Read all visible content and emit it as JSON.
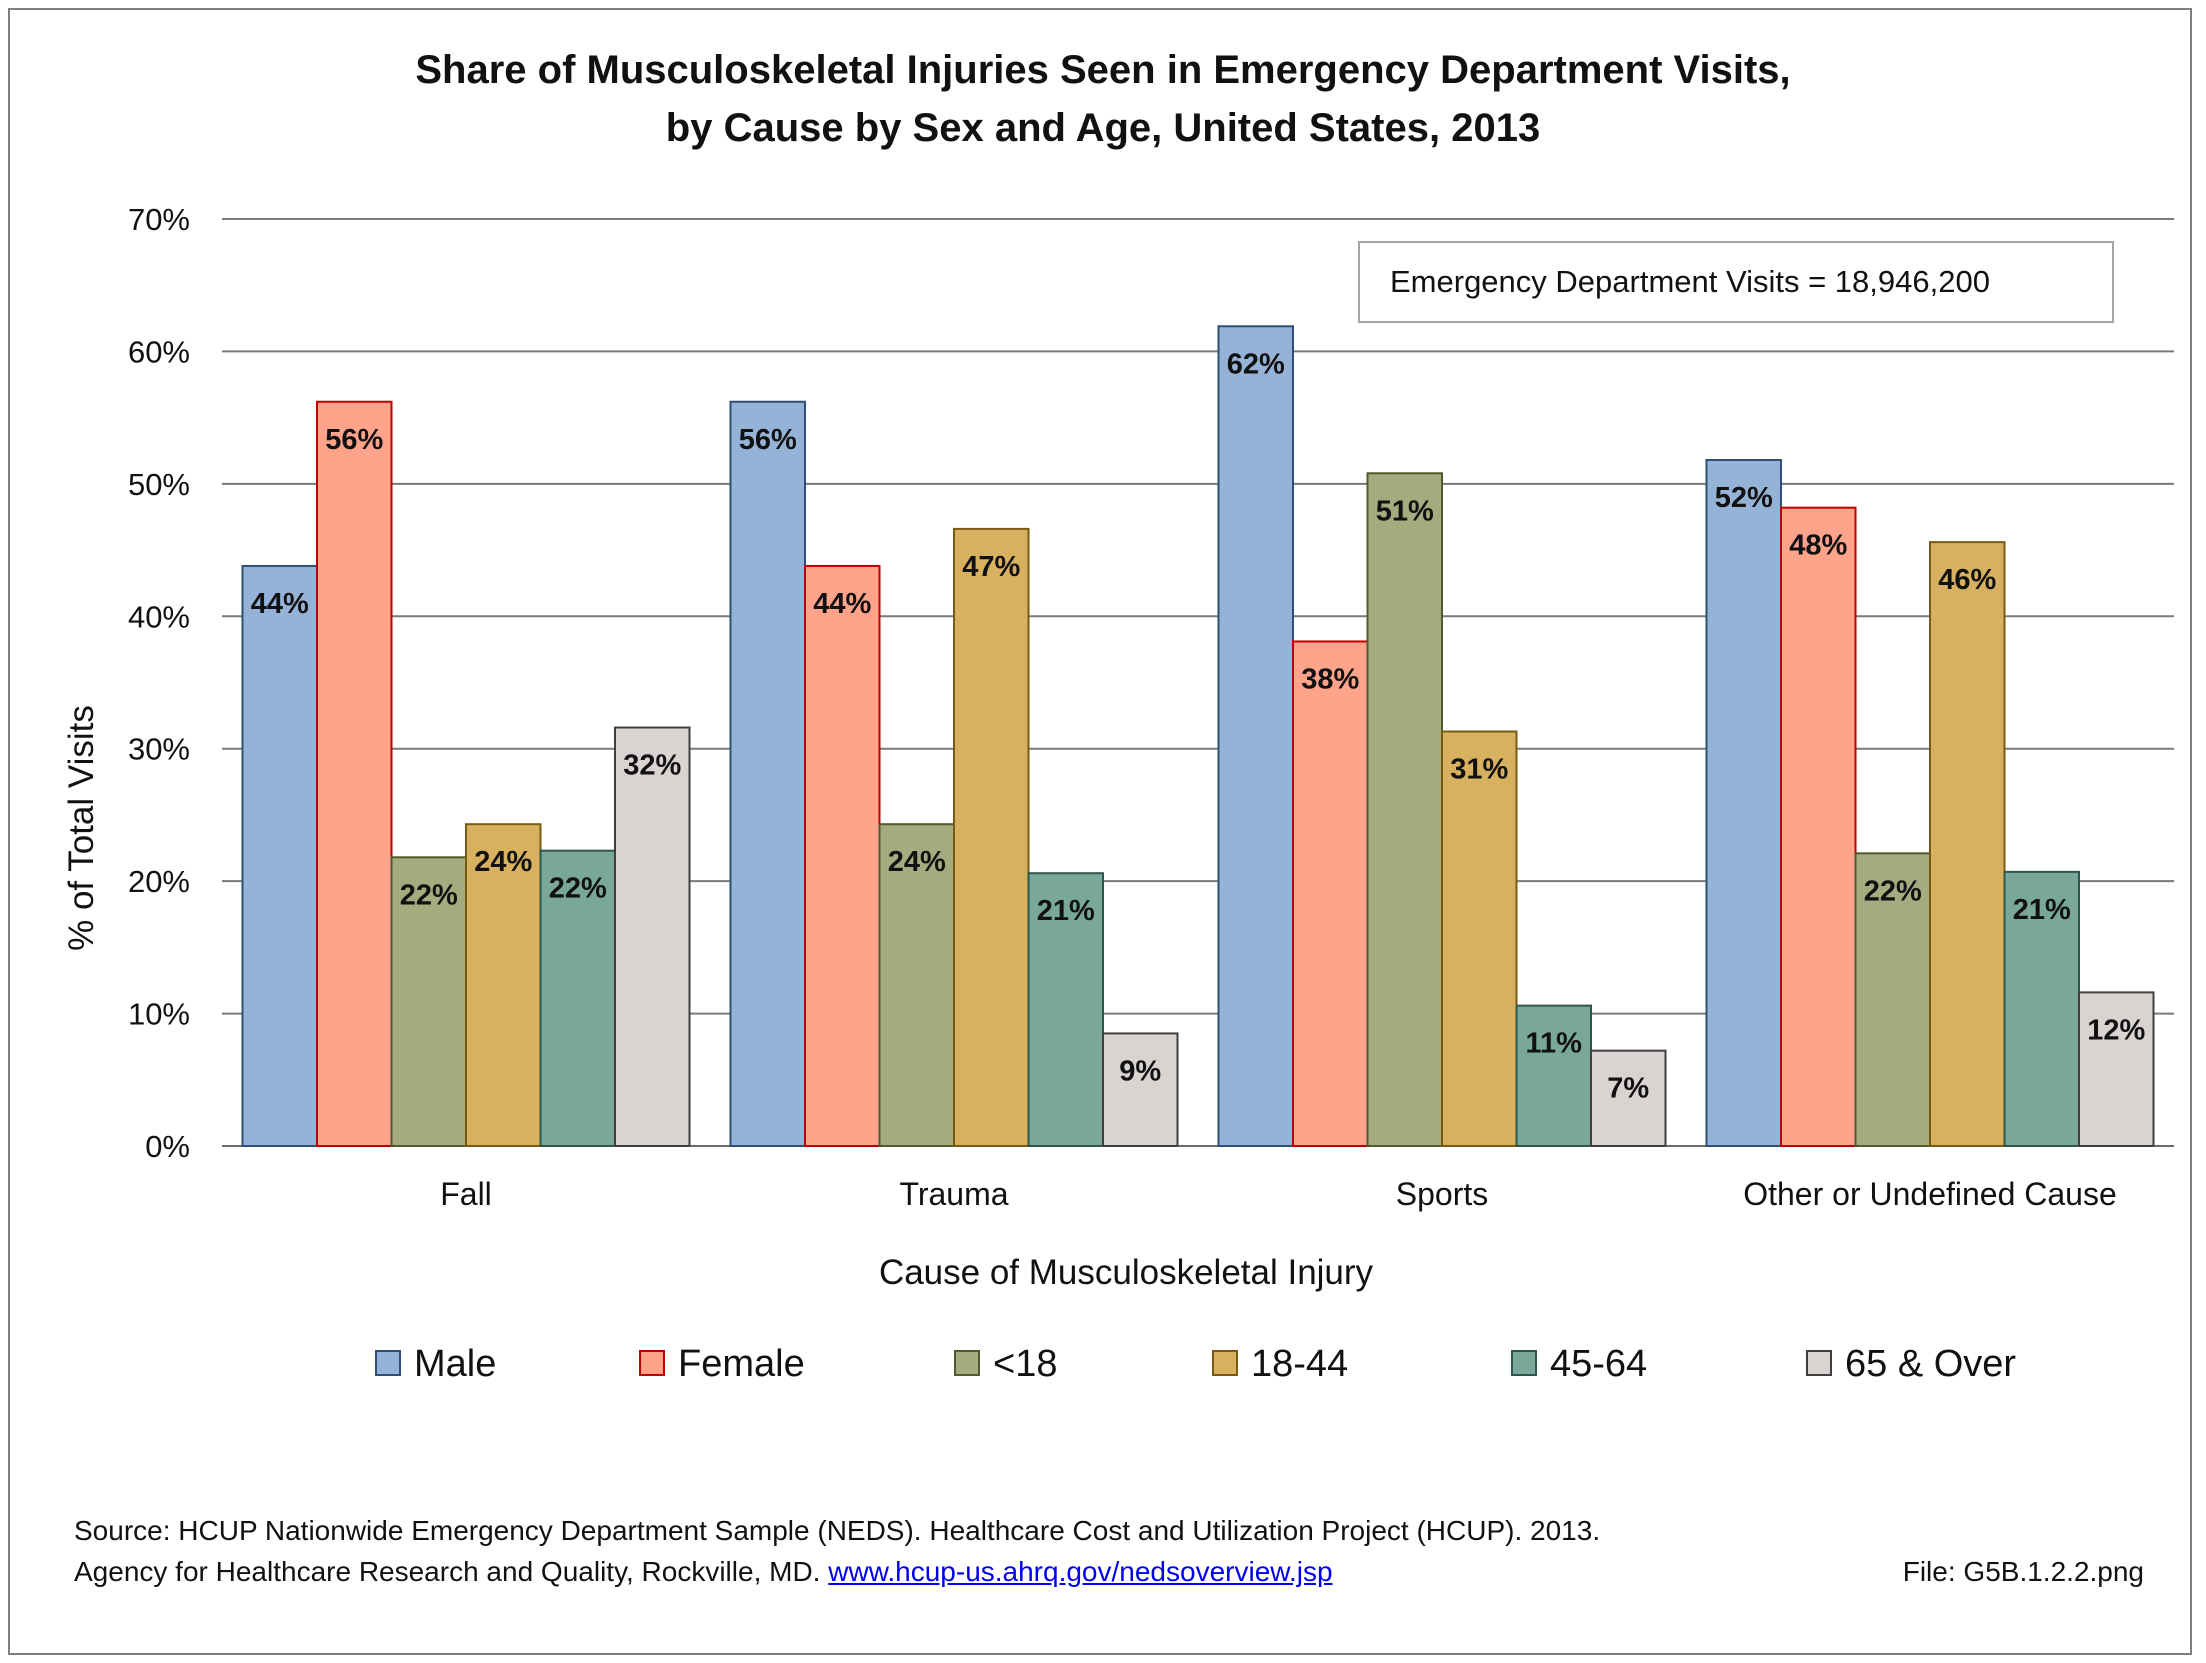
{
  "title_line1": "Share of Musculoskeletal Injuries Seen in Emergency Department Visits,",
  "title_line2": "by Cause by Sex and Age, United States, 2013",
  "annotation": "Emergency Department Visits = 18,946,200",
  "source_line1": "Source: HCUP Nationwide Emergency Department Sample (NEDS). Healthcare Cost and Utilization Project (HCUP). 2013.",
  "source_line2_prefix": "Agency for Healthcare Research and Quality, Rockville, MD. ",
  "source_link": "www.hcup-us.ahrq.gov/nedsoverview.jsp",
  "file_label": "File: G5B.1.2.2.png",
  "chart_data": {
    "type": "bar",
    "xlabel": "Cause of Musculoskeletal Injury",
    "ylabel": "% of Total Visits",
    "ylim": [
      0,
      70
    ],
    "yticks": [
      0,
      10,
      20,
      30,
      40,
      50,
      60,
      70
    ],
    "ytick_suffix": "%",
    "grid": true,
    "legend_position": "bottom",
    "categories": [
      "Fall",
      "Trauma",
      "Sports",
      "Other or Undefined Cause"
    ],
    "series": [
      {
        "name": "Male",
        "color": "#95b3d7",
        "border": "#2e4f75",
        "values": [
          44,
          56,
          62,
          52
        ],
        "plot_values": [
          43.8,
          56.2,
          61.9,
          51.8
        ]
      },
      {
        "name": "Female",
        "color": "#ffa38a",
        "border": "#c00000",
        "values": [
          56,
          44,
          38,
          48
        ],
        "plot_values": [
          56.2,
          43.8,
          38.1,
          48.2
        ]
      },
      {
        "name": "<18",
        "color": "#a3ac7e",
        "border": "#4f5a2d",
        "values": [
          22,
          24,
          51,
          22
        ],
        "plot_values": [
          21.8,
          24.3,
          50.8,
          22.1
        ]
      },
      {
        "name": "18-44",
        "color": "#d7b15f",
        "border": "#7a5a12",
        "values": [
          24,
          47,
          31,
          46
        ],
        "plot_values": [
          24.3,
          46.6,
          31.3,
          45.6
        ]
      },
      {
        "name": "45-64",
        "color": "#79a79a",
        "border": "#2d564c",
        "values": [
          22,
          21,
          11,
          21
        ],
        "plot_values": [
          22.3,
          20.6,
          10.6,
          20.7
        ]
      },
      {
        "name": "65 & Over",
        "color": "#d9d4d2",
        "border": "#3f3f3f",
        "values": [
          32,
          9,
          7,
          12
        ],
        "plot_values": [
          31.6,
          8.5,
          7.2,
          11.6
        ]
      }
    ]
  }
}
